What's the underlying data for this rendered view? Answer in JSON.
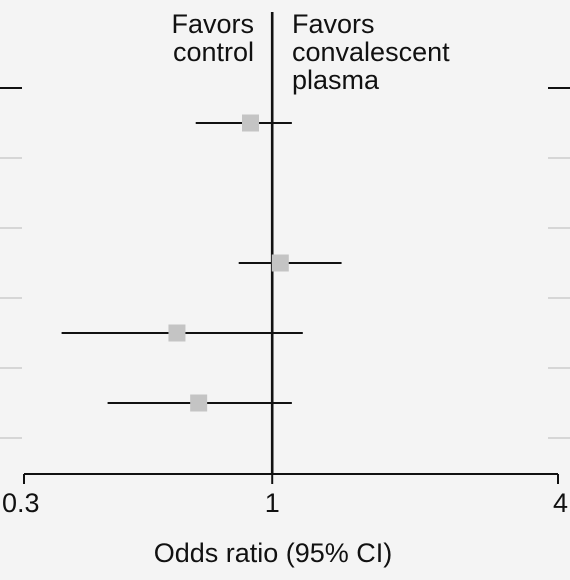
{
  "chart_data": {
    "type": "forest",
    "xlabel": "Odds ratio (95% CI)",
    "x_scale": "log",
    "xlim": [
      0.3,
      4
    ],
    "xticks": [
      {
        "value": 0.3,
        "label": "0.3"
      },
      {
        "value": 1,
        "label": "1"
      },
      {
        "value": 4,
        "label": "4"
      }
    ],
    "reference_line": 1,
    "annotations": {
      "left": [
        "Favors",
        "control"
      ],
      "right": [
        "Favors",
        "convalescent",
        "plasma"
      ]
    },
    "row_count": 6,
    "rows": [
      {
        "row": 1,
        "estimate": 0.9,
        "ci_low": 0.69,
        "ci_high": 1.1
      },
      {
        "row": 2,
        "estimate": null,
        "ci_low": null,
        "ci_high": null
      },
      {
        "row": 3,
        "estimate": 1.04,
        "ci_low": 0.85,
        "ci_high": 1.4
      },
      {
        "row": 4,
        "estimate": 0.63,
        "ci_low": 0.36,
        "ci_high": 1.16
      },
      {
        "row": 5,
        "estimate": 0.7,
        "ci_low": 0.45,
        "ci_high": 1.1
      },
      {
        "row": 6,
        "estimate": null,
        "ci_low": null,
        "ci_high": null
      }
    ],
    "colors": {
      "marker": "#c4c4c4",
      "line": "#111111",
      "side_tick": "#d6d6d6",
      "background": "#f4f4f4"
    }
  }
}
